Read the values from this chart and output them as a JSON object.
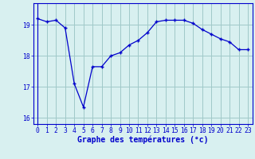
{
  "x": [
    0,
    1,
    2,
    3,
    4,
    5,
    6,
    7,
    8,
    9,
    10,
    11,
    12,
    13,
    14,
    15,
    16,
    17,
    18,
    19,
    20,
    21,
    22,
    23
  ],
  "y": [
    19.2,
    19.1,
    19.15,
    18.9,
    17.1,
    16.35,
    17.65,
    17.65,
    18.0,
    18.1,
    18.35,
    18.5,
    18.75,
    19.1,
    19.15,
    19.15,
    19.15,
    19.05,
    18.85,
    18.7,
    18.55,
    18.45,
    18.2,
    18.2
  ],
  "xlim": [
    -0.5,
    23.5
  ],
  "ylim": [
    15.8,
    19.7
  ],
  "yticks": [
    16,
    17,
    18,
    19
  ],
  "xticks": [
    0,
    1,
    2,
    3,
    4,
    5,
    6,
    7,
    8,
    9,
    10,
    11,
    12,
    13,
    14,
    15,
    16,
    17,
    18,
    19,
    20,
    21,
    22,
    23
  ],
  "xlabel": "Graphe des températures (°c)",
  "line_color": "#0000cc",
  "marker": "+",
  "marker_size": 3.5,
  "marker_linewidth": 1.0,
  "bg_color": "#d8f0f0",
  "grid_color": "#a0c8c8",
  "label_fontsize": 7,
  "tick_fontsize": 5.8,
  "xlabel_fontsize": 7
}
